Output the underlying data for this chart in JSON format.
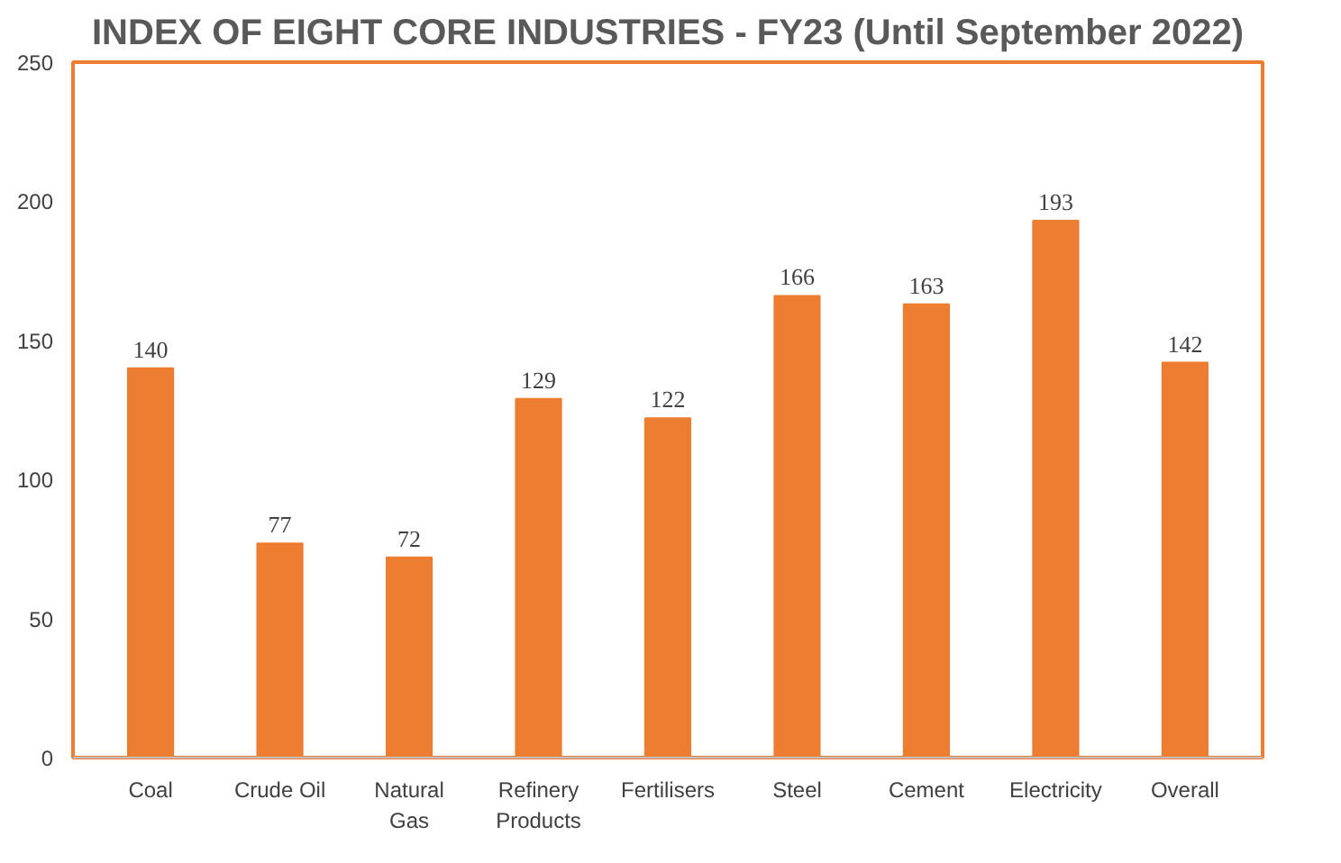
{
  "chart_data": {
    "type": "bar",
    "title": "INDEX OF EIGHT CORE INDUSTRIES - FY23 (Until September 2022)",
    "categories": [
      "Coal",
      "Crude Oil",
      "Natural Gas",
      "Refinery Products",
      "Fertilisers",
      "Steel",
      "Cement",
      "Electricity",
      "Overall"
    ],
    "values": [
      140,
      77,
      72,
      129,
      122,
      166,
      163,
      193,
      142
    ],
    "color": "#ed7d31",
    "ylim": [
      0,
      250
    ],
    "yticks": [
      0,
      50,
      100,
      150,
      200,
      250
    ],
    "grid": false,
    "data_labels": true
  }
}
